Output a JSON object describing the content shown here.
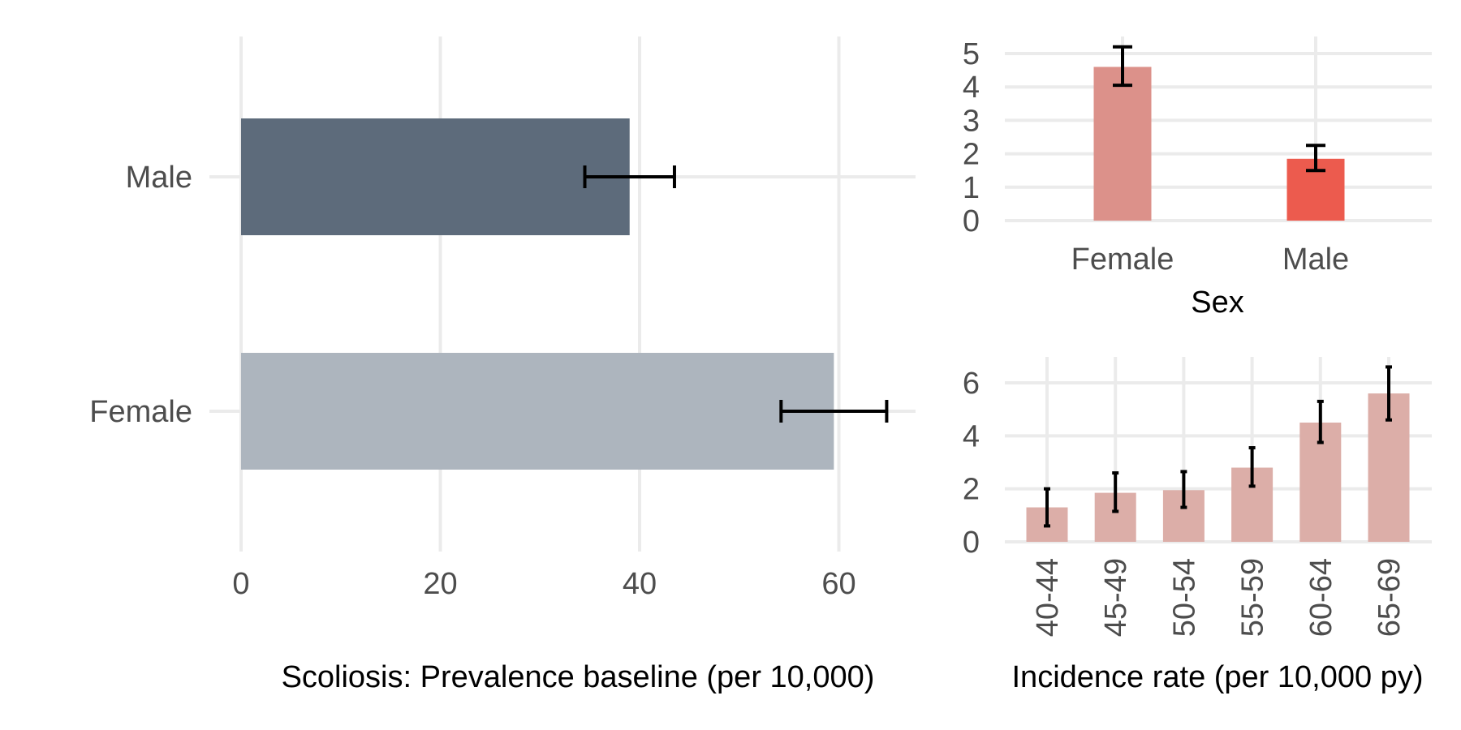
{
  "chart_data": [
    {
      "type": "bar",
      "orientation": "horizontal",
      "categories": [
        "Male",
        "Female"
      ],
      "values": [
        39,
        59.5
      ],
      "error_low": [
        34.5,
        54.2
      ],
      "error_high": [
        43.5,
        64.8
      ],
      "colors": [
        "#5d6b7b",
        "#adb5be"
      ],
      "xlabel": "Scoliosis: Prevalence baseline (per 10,000)",
      "ylabel": "",
      "xlim": [
        0,
        68
      ],
      "x_ticks": [
        "0",
        "20",
        "40",
        "60"
      ],
      "x_tick_values": [
        0,
        20,
        40,
        60
      ],
      "grid": true
    },
    {
      "type": "bar",
      "categories": [
        "Female",
        "Male"
      ],
      "values": [
        4.6,
        1.85
      ],
      "error_low": [
        4.05,
        1.5
      ],
      "error_high": [
        5.2,
        2.25
      ],
      "colors": [
        "#dc918a",
        "#ec5b4e"
      ],
      "xlabel": "Sex",
      "ylabel": "",
      "ylim": [
        0,
        5.3
      ],
      "y_ticks": [
        "0",
        "1",
        "2",
        "3",
        "4",
        "5"
      ],
      "y_tick_values": [
        0,
        1,
        2,
        3,
        4,
        5
      ],
      "grid": true
    },
    {
      "type": "bar",
      "categories": [
        "40-44",
        "45-49",
        "50-54",
        "55-59",
        "60-64",
        "65-69"
      ],
      "values": [
        1.3,
        1.85,
        1.95,
        2.8,
        4.5,
        5.6
      ],
      "error_low": [
        0.6,
        1.15,
        1.3,
        2.1,
        3.75,
        4.6
      ],
      "error_high": [
        2.0,
        2.6,
        2.65,
        3.55,
        5.3,
        6.6
      ],
      "colors": [
        "#dcaea8"
      ],
      "xlabel": "Incidence rate (per 10,000 py)",
      "ylabel": "",
      "ylim": [
        0,
        7
      ],
      "y_ticks": [
        "0",
        "2",
        "4",
        "6"
      ],
      "y_tick_values": [
        0,
        2,
        4,
        6
      ],
      "grid": true
    }
  ]
}
